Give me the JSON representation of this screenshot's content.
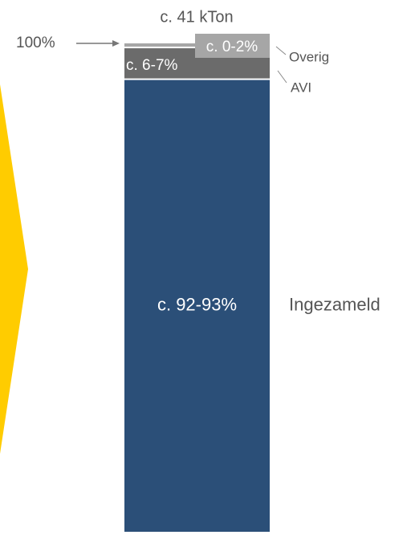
{
  "chart_data": {
    "type": "stacked_bar",
    "title": "c. 41 kTon",
    "categories": [
      null
    ],
    "series": [
      {
        "name": "Ingezameld",
        "color": "#2b4f78",
        "values": [
          92.5
        ],
        "value_labels": [
          "c. 92-93%"
        ]
      },
      {
        "name": "AVI",
        "color": "#6b6b6b",
        "values": [
          6.5
        ],
        "value_labels": [
          "c. 6-7%"
        ]
      },
      {
        "name": "Overig",
        "color": "#a6a6a6",
        "values": [
          1
        ],
        "value_labels": [
          "c. 0-2%"
        ]
      }
    ],
    "ylim": [
      0,
      100
    ],
    "yticks": [
      {
        "value": 100,
        "label": "100%"
      }
    ]
  }
}
